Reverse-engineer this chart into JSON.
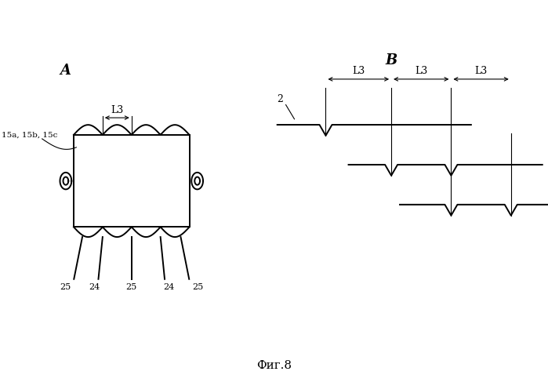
{
  "caption": "Фиг.8",
  "label_A": "A",
  "label_B": "B",
  "label_L3": "L3",
  "label_15": "15a, 15b, 15c",
  "label_2": "2",
  "labels_bottom": [
    "25",
    "24",
    "25",
    "24",
    "25"
  ],
  "bg_color": "#ffffff",
  "line_color": "#000000",
  "lw_main": 1.4,
  "lw_thin": 0.8
}
